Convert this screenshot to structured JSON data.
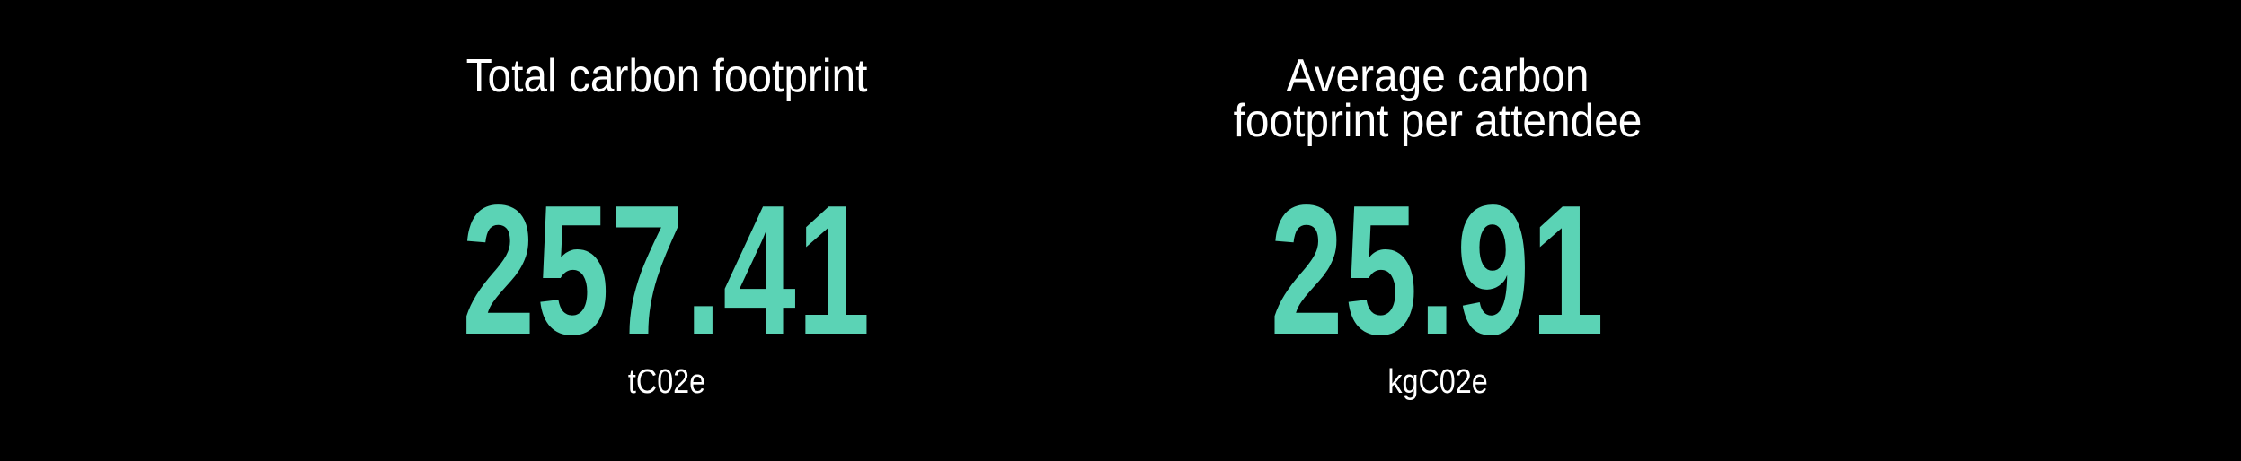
{
  "accent_color": "#5BD3B5",
  "stats": [
    {
      "title": "Total carbon footprint",
      "value": "257.41",
      "unit": "tC02e"
    },
    {
      "title": "Average carbon footprint per attendee",
      "value": "25.91",
      "unit": "kgC02e"
    }
  ]
}
